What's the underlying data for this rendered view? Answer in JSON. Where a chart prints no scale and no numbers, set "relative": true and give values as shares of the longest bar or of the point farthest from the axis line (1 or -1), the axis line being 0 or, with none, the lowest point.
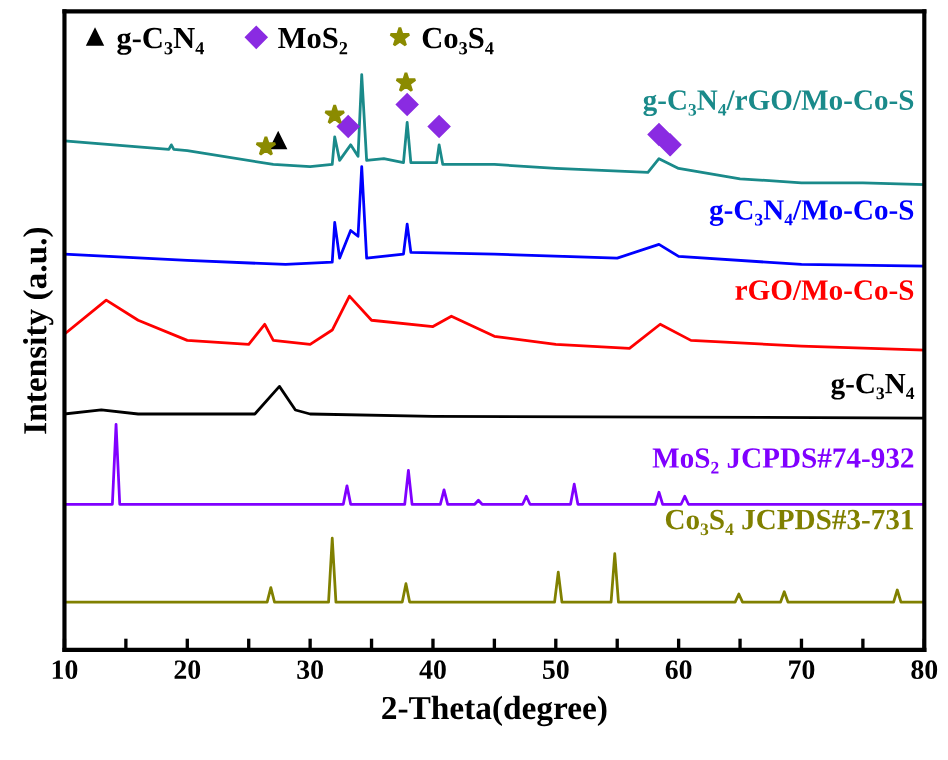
{
  "chart_data": {
    "type": "line",
    "relative": true,
    "xlabel": "2-Theta(degree)",
    "ylabel": "Intensity (a.u.)",
    "xlim": [
      10,
      80
    ],
    "xticks": [
      10,
      {
        "value": 15,
        "label": null
      },
      20,
      {
        "value": 25,
        "label": null
      },
      30,
      {
        "value": 35,
        "label": null
      },
      40,
      {
        "value": 45,
        "label": null
      },
      50,
      {
        "value": 55,
        "label": null
      },
      60,
      {
        "value": 65,
        "label": null
      },
      70,
      {
        "value": 75,
        "label": null
      },
      80
    ],
    "grid": false,
    "legend": "top left",
    "tick_labels": "x",
    "series": [
      {
        "name": "g-C₃N₄/rGO/Mo-Co-S",
        "color": "#1a8a8a",
        "x": [
          10,
          18.5,
          18.7,
          18.9,
          20,
          27,
          30,
          31.8,
          32.0,
          32.4,
          33.3,
          33.9,
          34.2,
          34.6,
          36,
          37.6,
          37.9,
          38.2,
          40.3,
          40.5,
          40.8,
          45,
          50,
          57.5,
          58.4,
          60,
          65,
          70,
          75,
          80
        ],
        "values": [
          0.885,
          0.87,
          0.878,
          0.87,
          0.868,
          0.844,
          0.84,
          0.844,
          0.892,
          0.851,
          0.878,
          0.858,
          1.0,
          0.851,
          0.854,
          0.847,
          0.917,
          0.847,
          0.847,
          0.878,
          0.844,
          0.844,
          0.837,
          0.83,
          0.854,
          0.837,
          0.819,
          0.812,
          0.812,
          0.809
        ]
      },
      {
        "name": "g-C₃N₄/Mo-Co-S",
        "color": "#0000ff",
        "x": [
          10,
          20,
          28,
          31.8,
          32.0,
          32.4,
          33.3,
          33.9,
          34.2,
          34.6,
          37.6,
          37.9,
          38.2,
          45,
          55,
          58.4,
          60,
          70,
          80
        ],
        "values": [
          0.688,
          0.677,
          0.67,
          0.674,
          0.743,
          0.681,
          0.729,
          0.719,
          0.84,
          0.681,
          0.688,
          0.74,
          0.691,
          0.688,
          0.681,
          0.705,
          0.684,
          0.67,
          0.667
        ]
      },
      {
        "name": "rGO/Mo-Co-S",
        "color": "#ff0000",
        "x": [
          10,
          13.4,
          16,
          20,
          25,
          26.3,
          27,
          30,
          31.8,
          33.2,
          35,
          40,
          41.5,
          45,
          50,
          56,
          58.5,
          61,
          70,
          80
        ],
        "values": [
          0.549,
          0.608,
          0.573,
          0.538,
          0.531,
          0.566,
          0.538,
          0.531,
          0.556,
          0.615,
          0.573,
          0.562,
          0.58,
          0.545,
          0.531,
          0.524,
          0.566,
          0.538,
          0.528,
          0.521
        ]
      },
      {
        "name": "g-C₃N₄",
        "color": "#000000",
        "x": [
          10,
          13,
          16,
          25.5,
          27.5,
          28.8,
          30,
          40,
          80
        ],
        "values": [
          0.41,
          0.417,
          0.41,
          0.41,
          0.458,
          0.417,
          0.41,
          0.406,
          0.403
        ]
      },
      {
        "name": "MoS₂ JCPDS#74-932",
        "color": "#8000ff",
        "x": [
          10,
          13.9,
          14.2,
          14.5,
          32.7,
          33.0,
          33.3,
          37.7,
          38.0,
          38.3,
          40.6,
          40.9,
          41.2,
          43.4,
          43.7,
          44.0,
          47.3,
          47.6,
          47.9,
          51.2,
          51.5,
          51.8,
          58.1,
          58.4,
          58.7,
          60.2,
          60.5,
          60.8,
          80
        ],
        "values": [
          0.253,
          0.253,
          0.392,
          0.253,
          0.253,
          0.285,
          0.253,
          0.253,
          0.312,
          0.253,
          0.253,
          0.278,
          0.253,
          0.253,
          0.26,
          0.253,
          0.253,
          0.267,
          0.253,
          0.253,
          0.288,
          0.253,
          0.253,
          0.274,
          0.253,
          0.253,
          0.267,
          0.253,
          0.253
        ]
      },
      {
        "name": "Co₃S₄ JCPDS#3-731",
        "color": "#808000",
        "x": [
          10,
          26.5,
          26.8,
          27.1,
          31.5,
          31.8,
          32.1,
          37.5,
          37.8,
          38.1,
          49.9,
          50.2,
          50.5,
          54.5,
          54.8,
          55.1,
          64.6,
          64.9,
          65.2,
          68.3,
          68.6,
          68.9,
          77.5,
          77.8,
          78.1,
          80
        ],
        "values": [
          0.083,
          0.083,
          0.108,
          0.083,
          0.083,
          0.194,
          0.083,
          0.083,
          0.115,
          0.083,
          0.083,
          0.135,
          0.083,
          0.083,
          0.167,
          0.083,
          0.083,
          0.097,
          0.083,
          0.083,
          0.101,
          0.083,
          0.083,
          0.104,
          0.083,
          0.083
        ]
      },
      {
        "name": "g-C₃N₄",
        "type": "scatter",
        "marker": "triangle",
        "color": "#000000",
        "x": [
          27.4
        ],
        "values": [
          0.885
        ]
      },
      {
        "name": "MoS₂",
        "type": "scatter",
        "marker": "diamond",
        "color": "#8a2be2",
        "x": [
          33.1,
          37.9,
          40.5,
          58.4,
          59.3
        ],
        "values": [
          0.91,
          0.948,
          0.91,
          0.896,
          0.878
        ]
      },
      {
        "name": "Co₃S₄",
        "type": "scatter",
        "marker": "star",
        "color": "#8b8b00",
        "x": [
          26.4,
          32.0,
          37.8
        ],
        "values": [
          0.875,
          0.93,
          0.986
        ]
      }
    ]
  }
}
